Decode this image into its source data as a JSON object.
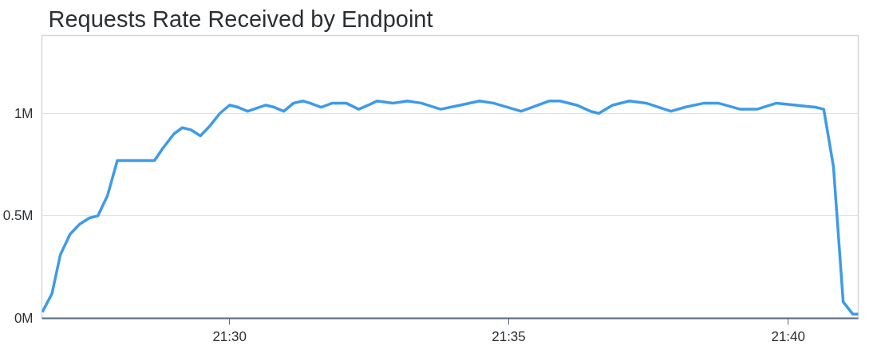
{
  "chart_data": {
    "type": "line",
    "title": "Requests Rate Received by Endpoint",
    "x": [
      21.4441,
      21.447,
      21.4495,
      21.4524,
      21.4553,
      21.4582,
      21.4607,
      21.4636,
      21.4665,
      21.4776,
      21.4801,
      21.4834,
      21.4859,
      21.4884,
      21.4913,
      21.4942,
      21.4971,
      21.5,
      21.5025,
      21.5054,
      21.5108,
      21.5133,
      21.5162,
      21.5191,
      21.522,
      21.524,
      21.5273,
      21.5307,
      21.5348,
      21.5385,
      21.5414,
      21.5439,
      21.5489,
      21.553,
      21.5572,
      21.563,
      21.5688,
      21.5746,
      21.5787,
      21.587,
      21.5953,
      21.5986,
      21.6036,
      21.6077,
      21.6102,
      21.6143,
      21.6193,
      21.6243,
      21.6317,
      21.6359,
      21.6416,
      21.6458,
      21.6524,
      21.6574,
      21.6632,
      21.669,
      21.6748,
      21.6773,
      21.6802,
      21.6831,
      21.686,
      21.6876
    ],
    "series": [
      {
        "color": "#3d9be9",
        "values": [
          0.03,
          0.12,
          0.31,
          0.41,
          0.46,
          0.49,
          0.5,
          0.6,
          0.77,
          0.77,
          0.83,
          0.9,
          0.93,
          0.92,
          0.89,
          0.94,
          1.0,
          1.04,
          1.03,
          1.01,
          1.04,
          1.03,
          1.01,
          1.05,
          1.06,
          1.05,
          1.03,
          1.05,
          1.05,
          1.02,
          1.04,
          1.06,
          1.05,
          1.06,
          1.05,
          1.02,
          1.04,
          1.06,
          1.05,
          1.01,
          1.06,
          1.06,
          1.04,
          1.01,
          1.0,
          1.04,
          1.06,
          1.05,
          1.01,
          1.03,
          1.05,
          1.05,
          1.02,
          1.02,
          1.05,
          1.04,
          1.03,
          1.02,
          0.74,
          0.08,
          0.02,
          0.02
        ]
      }
    ],
    "xlim": [
      21.444,
      21.6876
    ],
    "ylim": [
      0,
      1.38
    ],
    "xticks": [
      {
        "value": 21.5,
        "label": "21:30"
      },
      {
        "value": 21.5833,
        "label": "21:35"
      },
      {
        "value": 21.6667,
        "label": "21:40"
      }
    ],
    "yticks": [
      {
        "value": 0,
        "label": "0M"
      },
      {
        "value": 0.5,
        "label": "0.5M"
      },
      {
        "value": 1,
        "label": "1M"
      }
    ],
    "grid": "y",
    "marker": "none",
    "line_style": "solid"
  }
}
